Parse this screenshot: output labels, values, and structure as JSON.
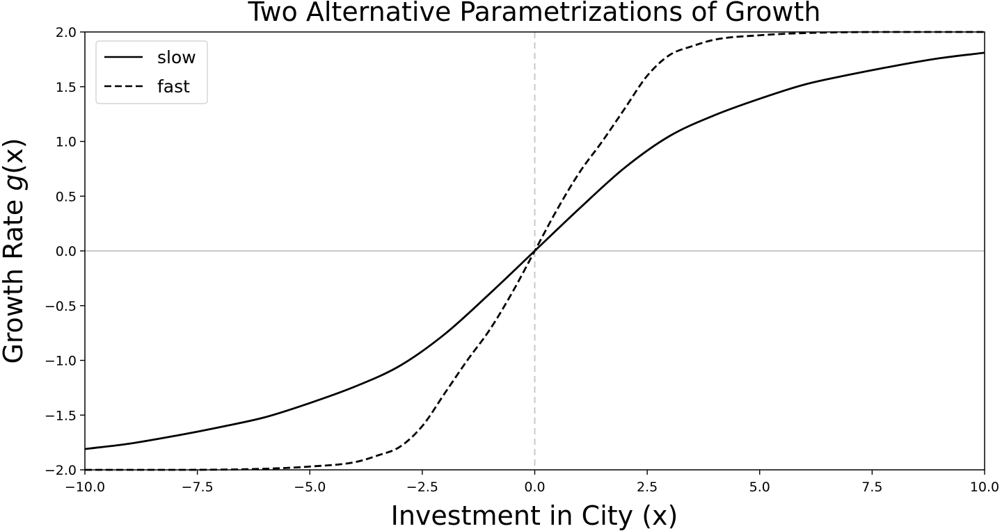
{
  "chart_data": {
    "type": "line",
    "title": "Two Alternative Parametrizations of Growth",
    "xlabel": "Investment in City (x)",
    "ylabel_prefix": "Growth Rate ",
    "ylabel_italic": "g",
    "ylabel_suffix": "(x)",
    "xlim": [
      -10,
      10
    ],
    "ylim": [
      -2,
      2
    ],
    "xticks": [
      -10,
      -7.5,
      -5,
      -2.5,
      0,
      2.5,
      5,
      7.5,
      10
    ],
    "xtick_labels": [
      "−10.0",
      "−7.5",
      "−5.0",
      "−2.5",
      "0.0",
      "2.5",
      "5.0",
      "7.5",
      "10.0"
    ],
    "yticks": [
      -2,
      -1.5,
      -1,
      -0.5,
      0,
      0.5,
      1,
      1.5,
      2
    ],
    "ytick_labels": [
      "−2.0",
      "−1.5",
      "−1.0",
      "−0.5",
      "0.0",
      "0.5",
      "1.0",
      "1.5",
      "2.0"
    ],
    "reference_lines": {
      "horizontal_y": 0,
      "vertical_x": 0,
      "color": "#c8c8c8"
    },
    "legend": {
      "placement": "top-left"
    },
    "series": [
      {
        "name": "slow",
        "style": "solid",
        "color": "#000000",
        "x": [
          -10,
          -9,
          -8,
          -7,
          -6,
          -5,
          -4,
          -3,
          -2,
          -1,
          0,
          1,
          2,
          3,
          4,
          5,
          6,
          7,
          8,
          9,
          10
        ],
        "y": [
          -1.81,
          -1.76,
          -1.69,
          -1.61,
          -1.52,
          -1.39,
          -1.24,
          -1.05,
          -0.76,
          -0.39,
          0.0,
          0.39,
          0.76,
          1.05,
          1.24,
          1.39,
          1.52,
          1.61,
          1.69,
          1.76,
          1.81
        ]
      },
      {
        "name": "fast",
        "style": "dashed",
        "color": "#000000",
        "x": [
          -10,
          -8,
          -6,
          -5,
          -4,
          -3.5,
          -3,
          -2.5,
          -2,
          -1.5,
          -1,
          -0.5,
          0,
          0.5,
          1,
          1.5,
          2,
          2.5,
          3,
          3.5,
          4,
          5,
          6,
          8,
          10
        ],
        "y": [
          -2.0,
          -2.0,
          -1.99,
          -1.97,
          -1.93,
          -1.87,
          -1.79,
          -1.6,
          -1.3,
          -1.0,
          -0.72,
          -0.38,
          0.0,
          0.38,
          0.72,
          1.0,
          1.3,
          1.6,
          1.79,
          1.87,
          1.93,
          1.97,
          1.99,
          2.0,
          2.0
        ]
      }
    ]
  }
}
